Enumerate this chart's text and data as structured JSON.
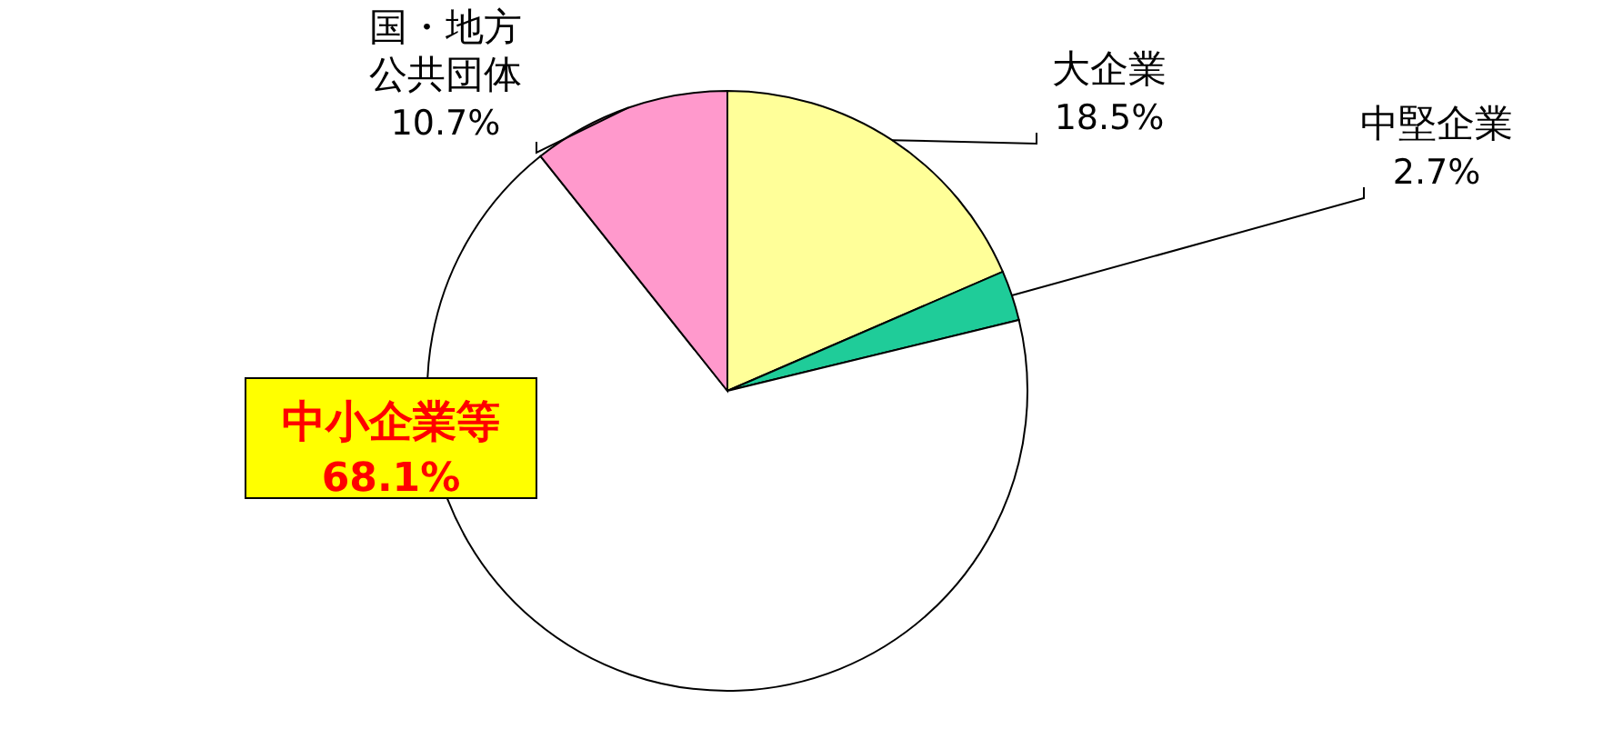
{
  "chart_data": {
    "type": "pie",
    "categories": [
      "大企業",
      "中堅企業",
      "中小企業等",
      "国・地方公共団体"
    ],
    "values": [
      18.5,
      2.7,
      68.1,
      10.7
    ],
    "value_labels": [
      "18.5%",
      "2.7%",
      "68.1%",
      "10.7%"
    ],
    "colors": [
      "#ffff99",
      "#1fcc99",
      "#ffffff",
      "#ff99cc"
    ]
  }
}
